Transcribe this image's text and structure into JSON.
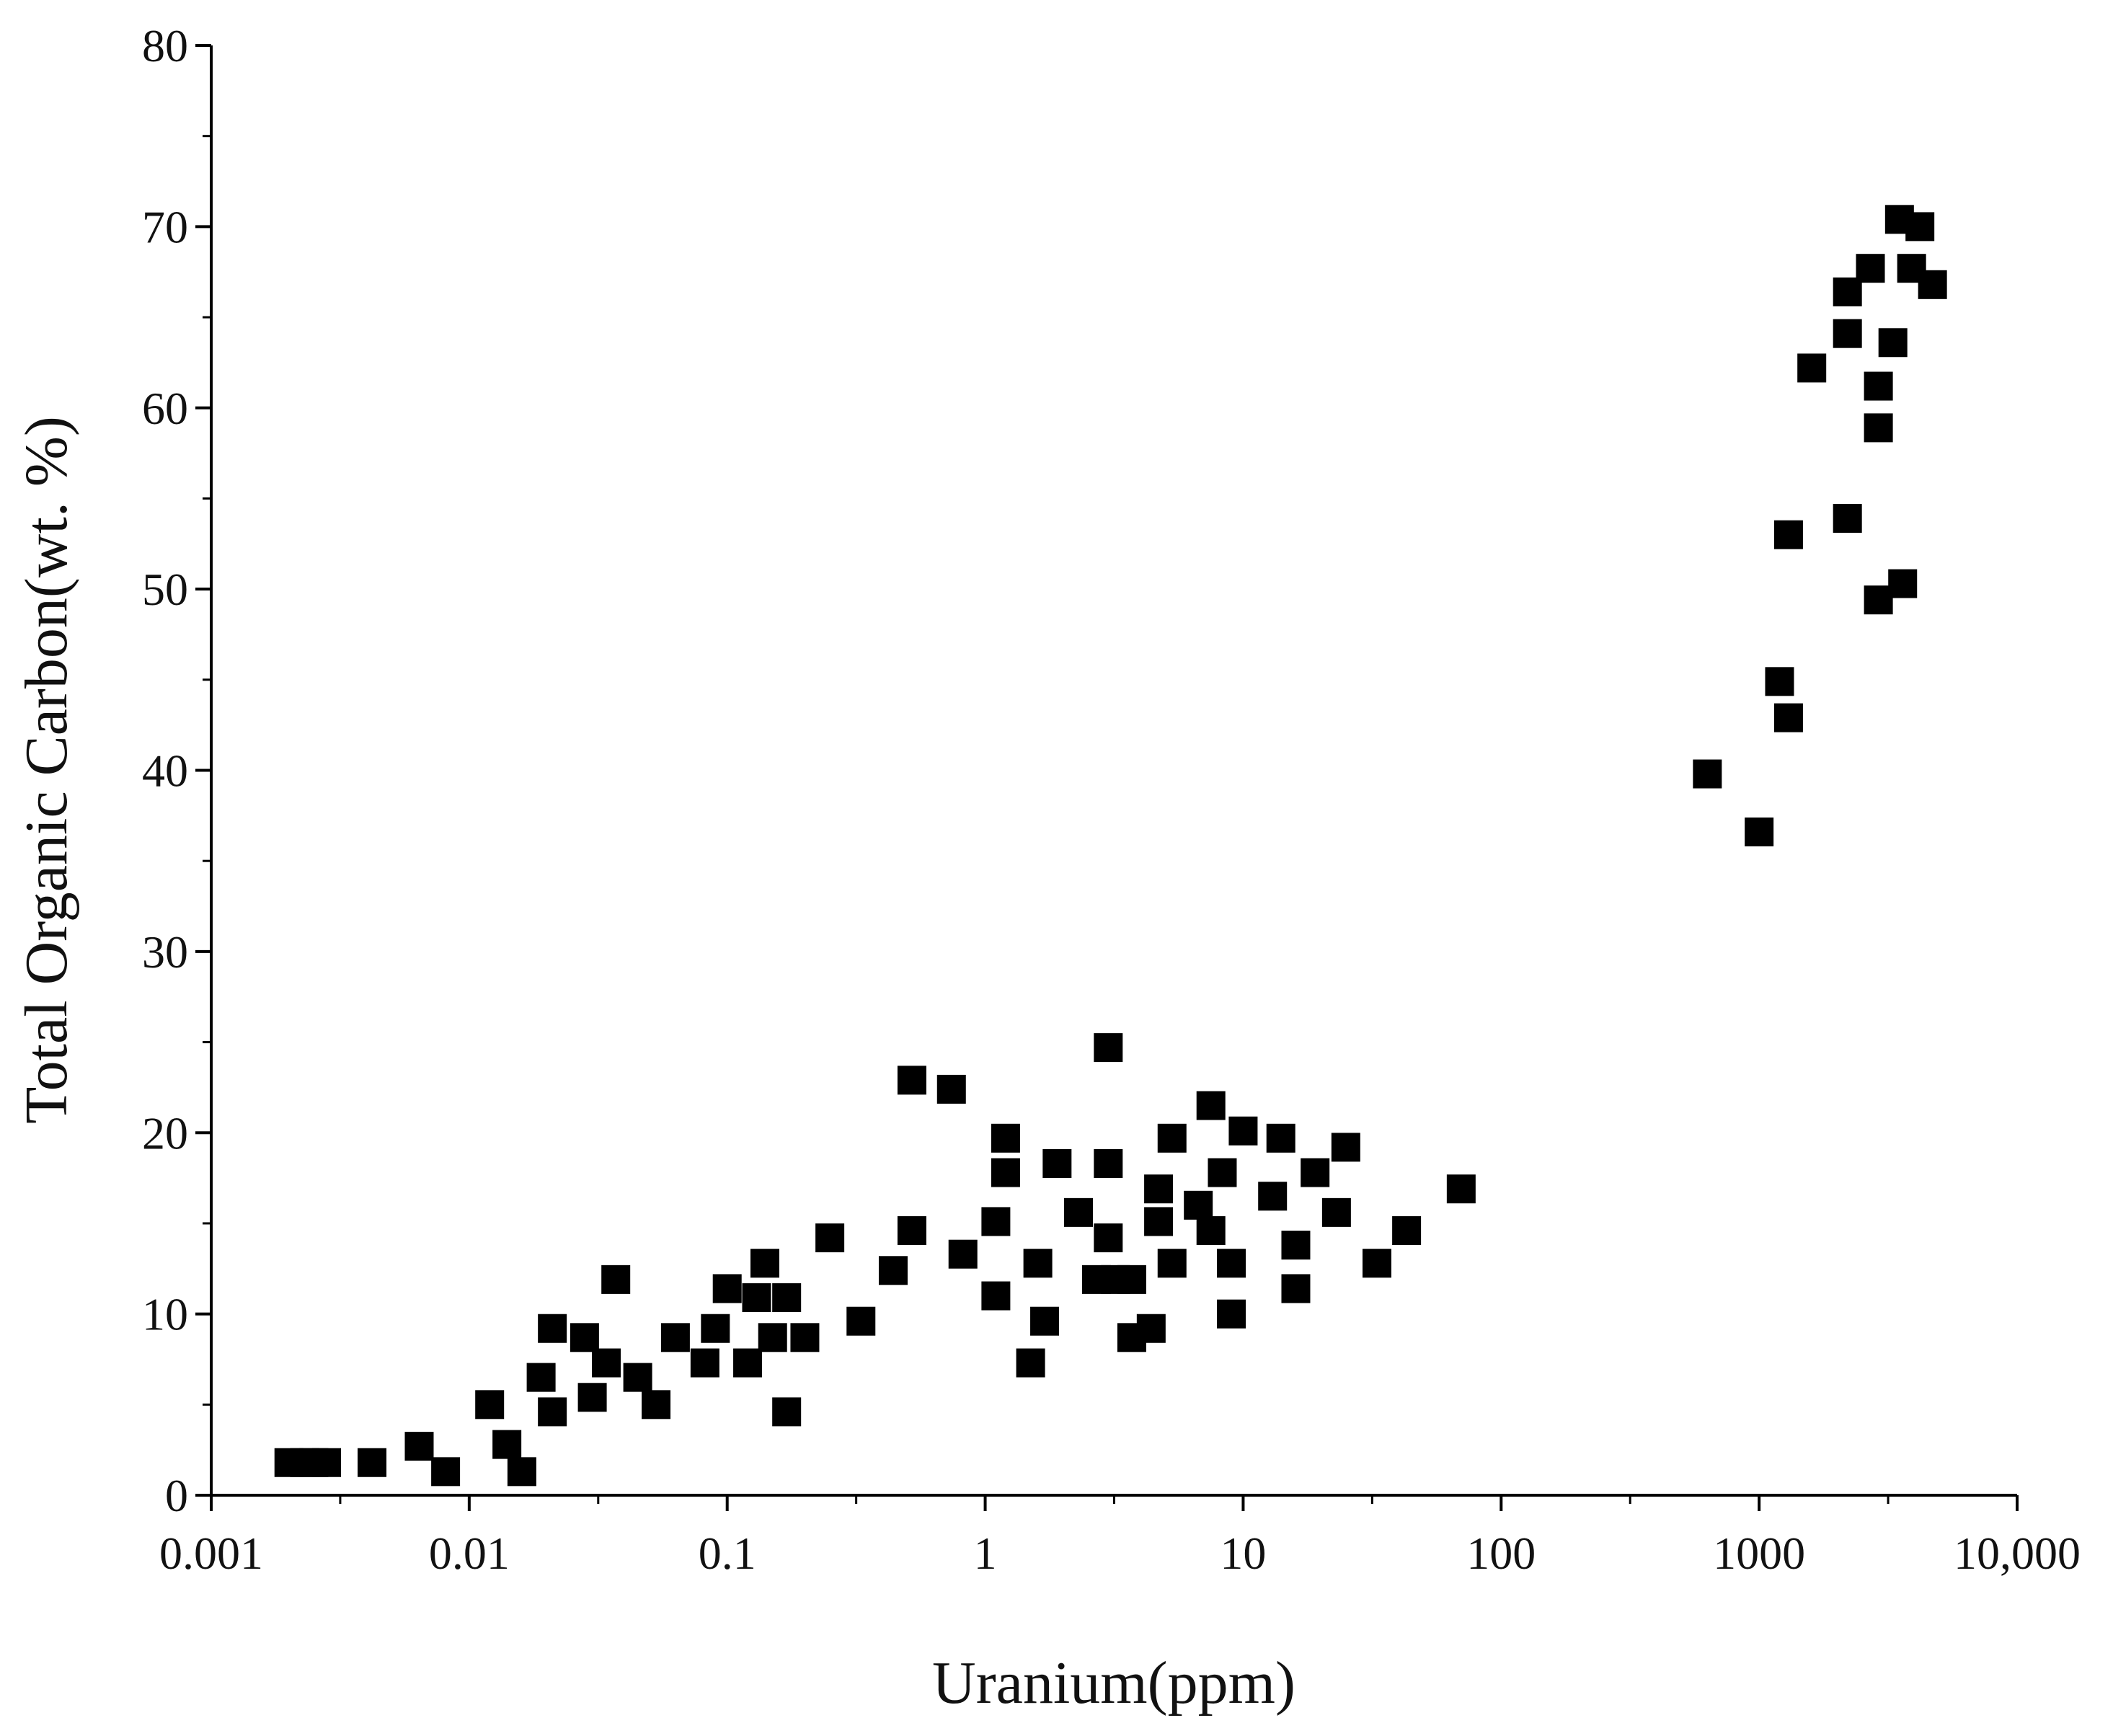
{
  "chart_data": {
    "type": "scatter",
    "title": "",
    "xlabel": "Uranium(ppm)",
    "ylabel": "Total Organic Carbon(wt. %)",
    "xscale": "log",
    "xlim": [
      0.001,
      10000
    ],
    "ylim": [
      0,
      80
    ],
    "xticks": [
      0.001,
      0.01,
      0.1,
      1,
      10,
      100,
      1000,
      10000
    ],
    "xtick_labels": [
      "0.001",
      "0.01",
      "0.1",
      "1",
      "10",
      "100",
      "1000",
      "10,000"
    ],
    "yticks": [
      0,
      10,
      20,
      30,
      40,
      50,
      60,
      70,
      80
    ],
    "ytick_labels": [
      "0",
      "10",
      "20",
      "30",
      "40",
      "50",
      "60",
      "70",
      "80"
    ],
    "grid": false,
    "legend": "none",
    "marker": "square",
    "marker_color": "#000000",
    "series": [
      {
        "points": [
          [
            0.002,
            1.8
          ],
          [
            0.0023,
            1.8
          ],
          [
            0.0025,
            1.8
          ],
          [
            0.0028,
            1.8
          ],
          [
            0.0042,
            1.8
          ],
          [
            0.0064,
            2.7
          ],
          [
            0.0081,
            1.3
          ],
          [
            0.012,
            5.0
          ],
          [
            0.014,
            2.8
          ],
          [
            0.016,
            1.3
          ],
          [
            0.019,
            6.5
          ],
          [
            0.021,
            4.6
          ],
          [
            0.021,
            9.2
          ],
          [
            0.028,
            8.7
          ],
          [
            0.03,
            5.4
          ],
          [
            0.034,
            7.3
          ],
          [
            0.037,
            11.9
          ],
          [
            0.045,
            6.5
          ],
          [
            0.053,
            5.0
          ],
          [
            0.063,
            8.7
          ],
          [
            0.082,
            7.3
          ],
          [
            0.09,
            9.2
          ],
          [
            0.1,
            11.4
          ],
          [
            0.12,
            7.3
          ],
          [
            0.13,
            10.9
          ],
          [
            0.14,
            12.8
          ],
          [
            0.15,
            8.7
          ],
          [
            0.17,
            10.9
          ],
          [
            0.17,
            4.6
          ],
          [
            0.2,
            8.7
          ],
          [
            0.25,
            14.2
          ],
          [
            0.33,
            9.6
          ],
          [
            0.44,
            12.4
          ],
          [
            0.52,
            14.6
          ],
          [
            0.52,
            22.9
          ],
          [
            0.74,
            22.4
          ],
          [
            0.82,
            13.3
          ],
          [
            1.1,
            15.1
          ],
          [
            1.1,
            11.0
          ],
          [
            1.2,
            19.7
          ],
          [
            1.2,
            17.8
          ],
          [
            1.5,
            7.3
          ],
          [
            1.6,
            12.8
          ],
          [
            1.7,
            9.6
          ],
          [
            1.9,
            18.3
          ],
          [
            2.3,
            15.6
          ],
          [
            2.7,
            11.9
          ],
          [
            3.0,
            24.7
          ],
          [
            3.0,
            18.3
          ],
          [
            3.0,
            14.2
          ],
          [
            3.2,
            11.9
          ],
          [
            3.7,
            11.9
          ],
          [
            3.7,
            8.7
          ],
          [
            4.4,
            9.2
          ],
          [
            4.7,
            15.1
          ],
          [
            4.7,
            16.9
          ],
          [
            5.3,
            19.7
          ],
          [
            5.3,
            12.8
          ],
          [
            6.7,
            16.0
          ],
          [
            7.5,
            21.5
          ],
          [
            7.5,
            14.6
          ],
          [
            8.3,
            17.8
          ],
          [
            9.0,
            12.8
          ],
          [
            9.0,
            10.0
          ],
          [
            10.0,
            20.1
          ],
          [
            13.0,
            16.5
          ],
          [
            14.0,
            19.7
          ],
          [
            16.0,
            13.8
          ],
          [
            16.0,
            11.4
          ],
          [
            19.0,
            17.8
          ],
          [
            23.0,
            15.6
          ],
          [
            25.0,
            19.2
          ],
          [
            33.0,
            12.8
          ],
          [
            43.0,
            14.6
          ],
          [
            70.0,
            16.9
          ],
          [
            630,
            39.8
          ],
          [
            1000,
            36.6
          ],
          [
            1200,
            44.9
          ],
          [
            1300,
            42.9
          ],
          [
            1300,
            53.0
          ],
          [
            1600,
            62.2
          ],
          [
            2200,
            53.9
          ],
          [
            2200,
            64.1
          ],
          [
            2200,
            66.4
          ],
          [
            2700,
            67.7
          ],
          [
            2900,
            49.4
          ],
          [
            2900,
            58.9
          ],
          [
            2900,
            61.2
          ],
          [
            3300,
            63.6
          ],
          [
            3500,
            70.4
          ],
          [
            3600,
            50.3
          ],
          [
            3900,
            67.7
          ],
          [
            4200,
            70.0
          ],
          [
            4700,
            66.8
          ]
        ]
      }
    ]
  }
}
